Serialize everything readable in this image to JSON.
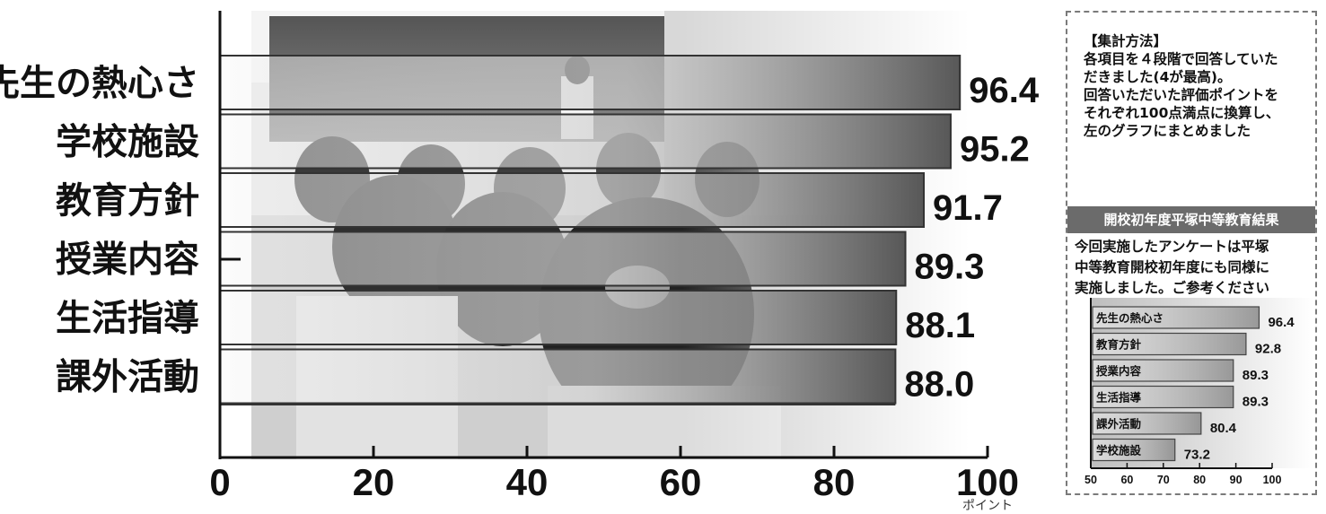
{
  "chart_data": [
    {
      "type": "bar",
      "orientation": "horizontal",
      "categories": [
        "先生の熱心さ",
        "学校施設",
        "教育方針",
        "授業内容",
        "生活指導",
        "課外活動"
      ],
      "values": [
        96.4,
        95.2,
        91.7,
        89.3,
        88.1,
        88.0
      ],
      "value_labels": [
        "96.4",
        "95.2",
        "91.7",
        "89.3",
        "88.1",
        "88.0"
      ],
      "xlim": [
        0,
        100
      ],
      "x_ticks": [
        "0",
        "20",
        "40",
        "60",
        "80",
        "100"
      ],
      "x_unit": "ポイント",
      "title": "",
      "xlabel": "",
      "ylabel": "",
      "grid": false,
      "background": "classroom photo"
    },
    {
      "type": "bar",
      "orientation": "horizontal",
      "title": "開校初年度平塚中等教育結果",
      "categories": [
        "先生の熱心さ",
        "教育方針",
        "授業内容",
        "生活指導",
        "課外活動",
        "学校施設"
      ],
      "values": [
        96.4,
        92.8,
        89.3,
        89.3,
        80.4,
        73.2
      ],
      "value_labels": [
        "96.4",
        "92.8",
        "89.3",
        "89.3",
        "80.4",
        "73.2"
      ],
      "xlim": [
        50,
        100
      ],
      "x_ticks": [
        "50",
        "60",
        "70",
        "80",
        "90",
        "100"
      ],
      "grid": false
    }
  ],
  "method": {
    "title": "【集計方法】",
    "lines": [
      "各項目を４段階で回答していた",
      "だきました(4が最高)。",
      "回答いただいた評価ポイントを",
      "それぞれ100点満点に換算し、",
      "左のグラフにまとめました"
    ]
  },
  "reference": {
    "header": "開校初年度平塚中等教育結果",
    "lines": [
      "今回実施したアンケートは平塚",
      "中等教育開校初年度にも同様に",
      "実施しました。ご参考ください"
    ]
  },
  "colors": {
    "bar_dark": "#4f4f4f",
    "bar_light": "#f2f2f2",
    "axis": "#111111",
    "panel_header": "#6b6b6b"
  }
}
